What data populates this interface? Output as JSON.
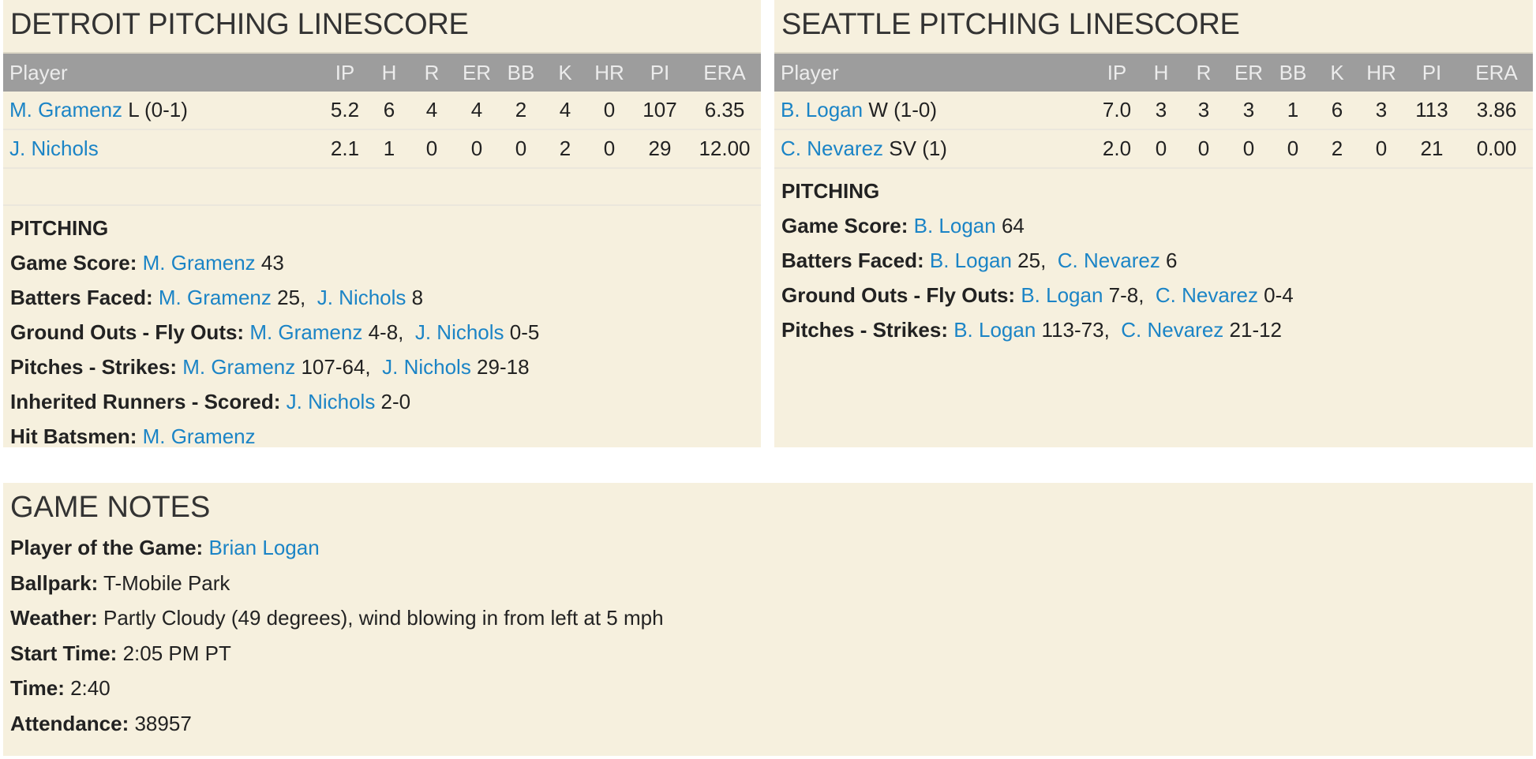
{
  "columns": [
    "Player",
    "IP",
    "H",
    "R",
    "ER",
    "BB",
    "K",
    "HR",
    "PI",
    "ERA"
  ],
  "detroit": {
    "title": "DETROIT PITCHING LINESCORE",
    "rows": [
      {
        "name": "M. Gramenz",
        "note": "L (0-1)",
        "stats": [
          "5.2",
          "6",
          "4",
          "4",
          "2",
          "4",
          "0",
          "107",
          "6.35"
        ]
      },
      {
        "name": "J. Nichols",
        "note": "",
        "stats": [
          "2.1",
          "1",
          "0",
          "0",
          "0",
          "2",
          "0",
          "29",
          "12.00"
        ]
      }
    ],
    "pitching": {
      "heading": "PITCHING",
      "lines": [
        {
          "label": "Game Score:",
          "parts": [
            {
              "name": "M. Gramenz",
              "val": " 43"
            }
          ]
        },
        {
          "label": "Batters Faced:",
          "parts": [
            {
              "name": "M. Gramenz",
              "val": " 25, "
            },
            {
              "name": "J. Nichols",
              "val": " 8"
            }
          ]
        },
        {
          "label": "Ground Outs - Fly Outs:",
          "parts": [
            {
              "name": "M. Gramenz",
              "val": " 4-8, "
            },
            {
              "name": "J. Nichols",
              "val": " 0-5"
            }
          ]
        },
        {
          "label": "Pitches - Strikes:",
          "parts": [
            {
              "name": "M. Gramenz",
              "val": " 107-64, "
            },
            {
              "name": "J. Nichols",
              "val": " 29-18"
            }
          ]
        },
        {
          "label": "Inherited Runners - Scored:",
          "parts": [
            {
              "name": "J. Nichols",
              "val": " 2-0"
            }
          ]
        },
        {
          "label": "Hit Batsmen:",
          "parts": [
            {
              "name": "M. Gramenz",
              "val": ""
            }
          ]
        }
      ]
    }
  },
  "seattle": {
    "title": "SEATTLE PITCHING LINESCORE",
    "rows": [
      {
        "name": "B. Logan",
        "note": "W (1-0)",
        "stats": [
          "7.0",
          "3",
          "3",
          "3",
          "1",
          "6",
          "3",
          "113",
          "3.86"
        ]
      },
      {
        "name": "C. Nevarez",
        "note": "SV (1)",
        "stats": [
          "2.0",
          "0",
          "0",
          "0",
          "0",
          "2",
          "0",
          "21",
          "0.00"
        ]
      }
    ],
    "pitching": {
      "heading": "PITCHING",
      "lines": [
        {
          "label": "Game Score:",
          "parts": [
            {
              "name": "B. Logan",
              "val": " 64"
            }
          ]
        },
        {
          "label": "Batters Faced:",
          "parts": [
            {
              "name": "B. Logan",
              "val": " 25, "
            },
            {
              "name": "C. Nevarez",
              "val": " 6"
            }
          ]
        },
        {
          "label": "Ground Outs - Fly Outs:",
          "parts": [
            {
              "name": "B. Logan",
              "val": " 7-8, "
            },
            {
              "name": "C. Nevarez",
              "val": " 0-4"
            }
          ]
        },
        {
          "label": "Pitches - Strikes:",
          "parts": [
            {
              "name": "B. Logan",
              "val": " 113-73, "
            },
            {
              "name": "C. Nevarez",
              "val": " 21-12"
            }
          ]
        }
      ]
    }
  },
  "notes": {
    "title": "GAME NOTES",
    "lines": [
      {
        "label": "Player of the Game:",
        "link": "Brian Logan",
        "val": ""
      },
      {
        "label": "Ballpark:",
        "link": "",
        "val": " T-Mobile Park"
      },
      {
        "label": "Weather:",
        "link": "",
        "val": " Partly Cloudy (49 degrees), wind blowing in from left at 5 mph"
      },
      {
        "label": "Start Time:",
        "link": "",
        "val": " 2:05 PM PT"
      },
      {
        "label": "Time:",
        "link": "",
        "val": " 2:40"
      },
      {
        "label": "Attendance:",
        "link": "",
        "val": " 38957"
      }
    ]
  },
  "colors": {
    "panel": "#f6f0de",
    "header": "#9d9d9d",
    "link": "#1b84c6"
  }
}
